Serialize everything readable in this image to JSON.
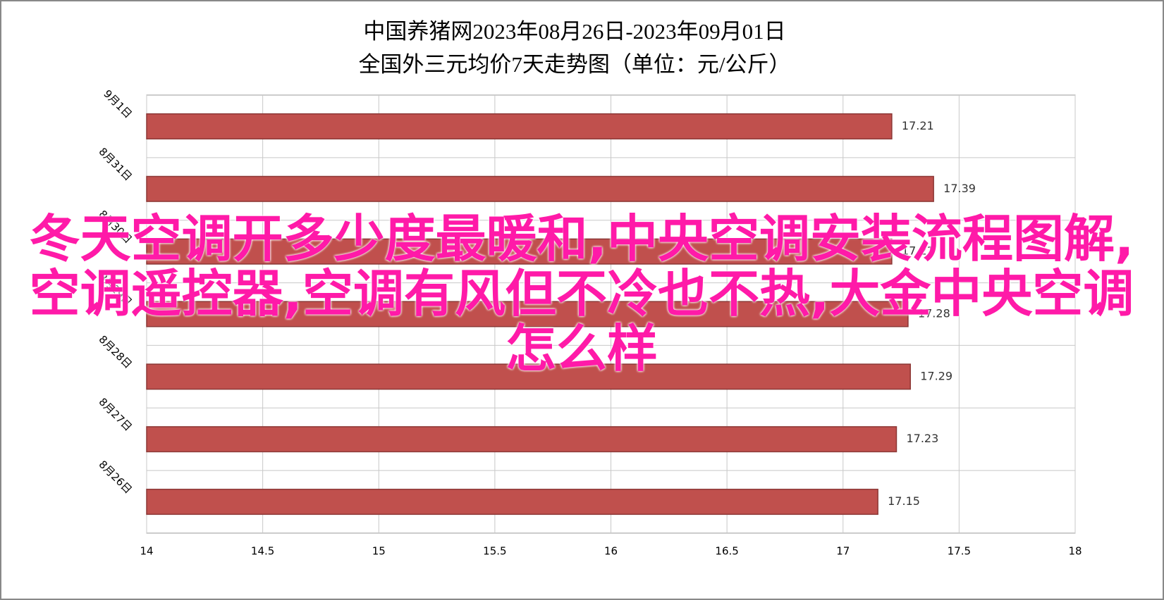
{
  "chart_data": {
    "type": "bar",
    "orientation": "horizontal",
    "title": "中国养猪网2023年08月26日-2023年09月01日",
    "subtitle": "全国外三元均价7天走势图（单位：元/公斤）",
    "categories": [
      "9月1日",
      "8月31日",
      "8月30日",
      "8月29日",
      "8月28日",
      "8月27日",
      "8月26日"
    ],
    "values": [
      17.21,
      17.39,
      17.21,
      17.28,
      17.29,
      17.23,
      17.15
    ],
    "color": "#c0504d",
    "xlim": [
      14,
      18
    ],
    "xticks": [
      14,
      14.5,
      15,
      15.5,
      16,
      16.5,
      17,
      17.5,
      18
    ],
    "grid": true
  },
  "overlay_text": "冬天空调开多少度最暖和,中央空调安装流程图解,空调遥控器,空调有风但不冷也不热,大金中央空调怎么样"
}
